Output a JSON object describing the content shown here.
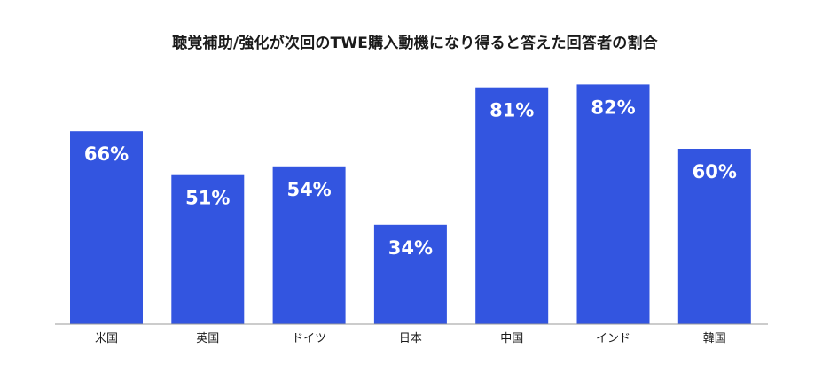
{
  "colors": {
    "bar": "#3355e0",
    "baseline": "#999999",
    "label": "#ffffff",
    "text": "#1a1a1a"
  },
  "chart_data": {
    "type": "bar",
    "title": "聴覚補助/強化が次回のTWE購入動機になり得ると答えた回答者の割合",
    "categories": [
      "米国",
      "英国",
      "ドイツ",
      "日本",
      "中国",
      "インド",
      "韓国"
    ],
    "values": [
      66,
      51,
      54,
      34,
      81,
      82,
      60
    ],
    "data_labels": [
      "66%",
      "51%",
      "54%",
      "34%",
      "81%",
      "82%",
      "60%"
    ],
    "xlabel": "",
    "ylabel": "",
    "ylim": [
      0,
      100
    ],
    "grid": false,
    "legend": "none"
  }
}
